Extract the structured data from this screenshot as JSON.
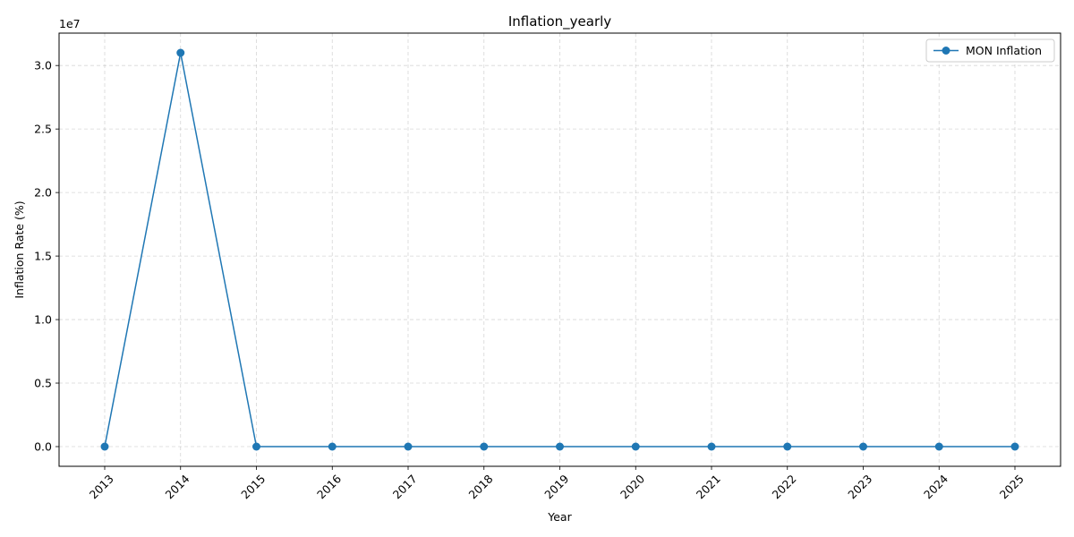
{
  "chart_data": {
    "type": "line",
    "title": "Inflation_yearly",
    "xlabel": "Year",
    "ylabel": "Inflation Rate (%)",
    "offset_label": "1e7",
    "x": [
      "2013",
      "2014",
      "2015",
      "2016",
      "2017",
      "2018",
      "2019",
      "2020",
      "2021",
      "2022",
      "2023",
      "2024",
      "2025"
    ],
    "series": [
      {
        "name": "MON Inflation",
        "color": "#1f77b4",
        "marker": "circle",
        "values": [
          0,
          31000000,
          0,
          0,
          0,
          0,
          0,
          0,
          0,
          0,
          0,
          0,
          0
        ]
      }
    ],
    "y_ticks": [
      {
        "value": 0,
        "label": "0.0"
      },
      {
        "value": 5000000,
        "label": "0.5"
      },
      {
        "value": 10000000,
        "label": "1.0"
      },
      {
        "value": 15000000,
        "label": "1.5"
      },
      {
        "value": 20000000,
        "label": "2.0"
      },
      {
        "value": 25000000,
        "label": "2.5"
      },
      {
        "value": 30000000,
        "label": "3.0"
      }
    ],
    "ylim": [
      -1550000,
      32550000
    ],
    "grid": true,
    "grid_style": "dashed",
    "legend_position": "top-right"
  }
}
